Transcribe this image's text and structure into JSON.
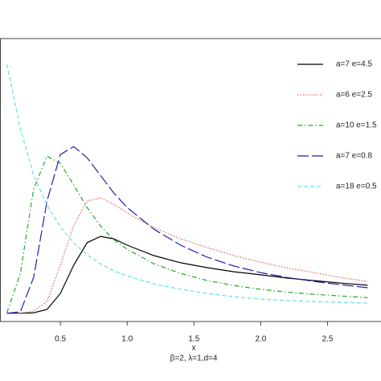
{
  "chart_data": {
    "type": "line",
    "x_label": "x",
    "subtitle": "β=2, λ=1,d=4",
    "x": [
      0.1,
      0.2,
      0.3,
      0.4,
      0.5,
      0.6,
      0.7,
      0.8,
      0.9,
      1.0,
      1.2,
      1.4,
      1.6,
      1.8,
      2.0,
      2.2,
      2.4,
      2.6,
      2.8
    ],
    "series": [
      {
        "name": "a=7  e=4.5",
        "color": "#000000",
        "linestyle": "solid",
        "values": [
          0,
          0,
          0.002,
          0.014,
          0.072,
          0.175,
          0.257,
          0.28,
          0.271,
          0.248,
          0.21,
          0.184,
          0.166,
          0.151,
          0.14,
          0.128,
          0.119,
          0.11,
          0.102
        ]
      },
      {
        "name": "a=6  e=2.5",
        "color": "#e06060",
        "linestyle": "dotted",
        "values": [
          0,
          0,
          0.008,
          0.043,
          0.175,
          0.32,
          0.408,
          0.42,
          0.397,
          0.365,
          0.312,
          0.271,
          0.239,
          0.21,
          0.186,
          0.165,
          0.148,
          0.13,
          0.116
        ]
      },
      {
        "name": "a=10 e=1.5",
        "color": "#22aa22",
        "linestyle": "dashdot",
        "values": [
          0.002,
          0.145,
          0.453,
          0.572,
          0.546,
          0.467,
          0.385,
          0.318,
          0.268,
          0.233,
          0.18,
          0.145,
          0.119,
          0.101,
          0.087,
          0.077,
          0.069,
          0.063,
          0.057
        ]
      },
      {
        "name": "a=7  e=0.8",
        "color": "#2020aa",
        "linestyle": "longdash",
        "values": [
          0,
          0.005,
          0.131,
          0.409,
          0.578,
          0.607,
          0.566,
          0.502,
          0.438,
          0.385,
          0.306,
          0.248,
          0.204,
          0.172,
          0.148,
          0.13,
          0.116,
          0.104,
          0.093
        ]
      },
      {
        "name": "a=18 e=0.5",
        "color": "#66e0e8",
        "linestyle": "dashed",
        "values": [
          0.906,
          0.672,
          0.502,
          0.394,
          0.315,
          0.256,
          0.212,
          0.18,
          0.154,
          0.136,
          0.107,
          0.087,
          0.072,
          0.06,
          0.052,
          0.046,
          0.043,
          0.04,
          0.037
        ]
      }
    ],
    "xlim": [
      0.048,
      2.9
    ],
    "ylim": [
      -0.03,
      1.0
    ],
    "xticks": [
      0.5,
      {
        "value": 1,
        "label": "1.0"
      },
      1.5,
      {
        "value": 2,
        "label": "2.0"
      },
      2.5
    ],
    "legend": "upper right"
  }
}
